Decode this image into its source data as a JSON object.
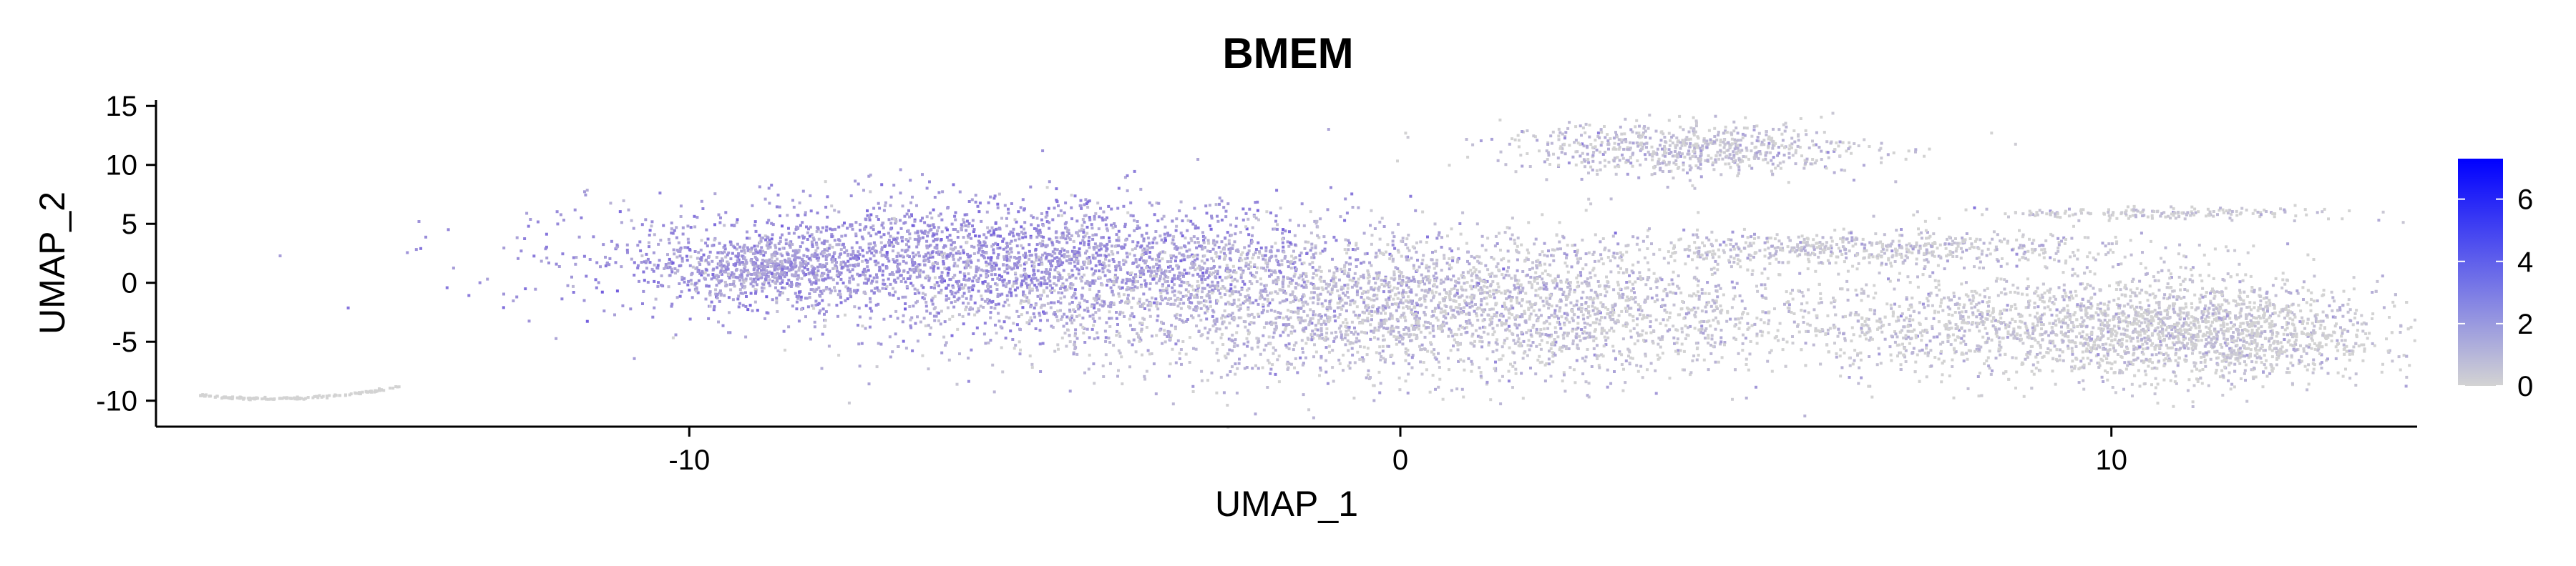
{
  "chart_data": {
    "type": "scatter",
    "title": "BMEM",
    "xlabel": "UMAP_1",
    "ylabel": "UMAP_2",
    "xlim": [
      -17.5,
      14.3
    ],
    "ylim": [
      -12.2,
      15.5
    ],
    "x_ticks": [
      {
        "value": -10,
        "label": "-10"
      },
      {
        "value": 0,
        "label": "0"
      },
      {
        "value": 10,
        "label": "10"
      }
    ],
    "y_ticks": [
      {
        "value": 15,
        "label": "15"
      },
      {
        "value": 10,
        "label": "10"
      },
      {
        "value": 5,
        "label": "5"
      },
      {
        "value": 0,
        "label": "0"
      },
      {
        "value": -5,
        "label": "-5"
      },
      {
        "value": -10,
        "label": "-10"
      }
    ],
    "grid": false,
    "legend": {
      "placement": "right",
      "type": "colorbar",
      "range": [
        0,
        7.3
      ],
      "low_color": "#d3d3d3",
      "high_color": "#0000ff",
      "ticks": [
        {
          "value": 6,
          "label": "6"
        },
        {
          "value": 4,
          "label": "4"
        },
        {
          "value": 2,
          "label": "2"
        },
        {
          "value": 0,
          "label": "0"
        }
      ]
    },
    "clusters": [
      {
        "name": "main-left-high",
        "cx": -6.0,
        "cy": 2.0,
        "sx": 2.6,
        "sy": 2.6,
        "n": 2600,
        "expr": 0.55
      },
      {
        "name": "main-center",
        "cx": -1.5,
        "cy": -1.5,
        "sx": 2.8,
        "sy": 3.2,
        "n": 2200,
        "expr": 0.22
      },
      {
        "name": "main-right",
        "cx": 2.0,
        "cy": -2.5,
        "sx": 1.8,
        "sy": 2.6,
        "n": 1200,
        "expr": 0.08
      },
      {
        "name": "tail-left",
        "cx": -9.0,
        "cy": 1.5,
        "sx": 0.7,
        "sy": 1.2,
        "n": 500,
        "expr": 0.45
      },
      {
        "name": "top-island",
        "cx": 4.0,
        "cy": 11.5,
        "sx": 1.3,
        "sy": 1.1,
        "n": 700,
        "expr": 0.12
      },
      {
        "name": "right-arm-upper",
        "cx": 6.5,
        "cy": 3.0,
        "sx": 2.0,
        "sy": 0.7,
        "n": 600,
        "expr": 0.1
      },
      {
        "name": "right-mass",
        "cx": 9.5,
        "cy": -3.5,
        "sx": 2.2,
        "sy": 2.2,
        "n": 2200,
        "expr": 0.05
      },
      {
        "name": "right-far",
        "cx": 11.5,
        "cy": -4.5,
        "sx": 1.1,
        "sy": 2.0,
        "n": 800,
        "expr": 0.04
      },
      {
        "name": "right-thin-top",
        "cx": 10.5,
        "cy": 6.0,
        "sx": 1.4,
        "sy": 0.25,
        "n": 180,
        "expr": 0.05
      },
      {
        "name": "far-left-arc",
        "cx": -15.5,
        "cy": -9.3,
        "sx": 0.9,
        "sy": 0.25,
        "n": 150,
        "expr": 0.0
      }
    ]
  }
}
